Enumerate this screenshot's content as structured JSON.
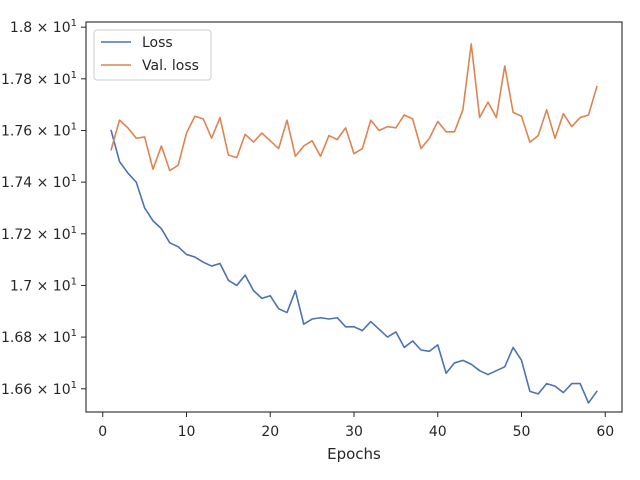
{
  "chart_data": {
    "type": "line",
    "title": "",
    "xlabel": "Epochs",
    "ylabel": "",
    "xlim": [
      -2,
      62
    ],
    "ylim": [
      16.51,
      18.02
    ],
    "grid": false,
    "legend_position": "top-left",
    "x_ticks": [
      {
        "value": 0,
        "label": "0"
      },
      {
        "value": 10,
        "label": "10"
      },
      {
        "value": 20,
        "label": "20"
      },
      {
        "value": 30,
        "label": "30"
      },
      {
        "value": 40,
        "label": "40"
      },
      {
        "value": 50,
        "label": "50"
      },
      {
        "value": 60,
        "label": "60"
      }
    ],
    "y_ticks": [
      {
        "value": 16.6,
        "mantissa": "1.66",
        "base": "10",
        "exp": "1"
      },
      {
        "value": 16.8,
        "mantissa": "1.68",
        "base": "10",
        "exp": "1"
      },
      {
        "value": 17.0,
        "mantissa": "1.7",
        "base": "10",
        "exp": "1"
      },
      {
        "value": 17.2,
        "mantissa": "1.72",
        "base": "10",
        "exp": "1"
      },
      {
        "value": 17.4,
        "mantissa": "1.74",
        "base": "10",
        "exp": "1"
      },
      {
        "value": 17.6,
        "mantissa": "1.76",
        "base": "10",
        "exp": "1"
      },
      {
        "value": 17.8,
        "mantissa": "1.78",
        "base": "10",
        "exp": "1"
      },
      {
        "value": 18.0,
        "mantissa": "1.8",
        "base": "10",
        "exp": "1"
      }
    ],
    "x": [
      1,
      2,
      3,
      4,
      5,
      6,
      7,
      8,
      9,
      10,
      11,
      12,
      13,
      14,
      15,
      16,
      17,
      18,
      19,
      20,
      21,
      22,
      23,
      24,
      25,
      26,
      27,
      28,
      29,
      30,
      31,
      32,
      33,
      34,
      35,
      36,
      37,
      38,
      39,
      40,
      41,
      42,
      43,
      44,
      45,
      46,
      47,
      48,
      49,
      50,
      51,
      52,
      53,
      54,
      55,
      56,
      57,
      58,
      59
    ],
    "series": [
      {
        "name": "Loss",
        "color": "#4c72b0",
        "values": [
          17.6,
          17.48,
          17.435,
          17.4,
          17.3,
          17.25,
          17.22,
          17.165,
          17.15,
          17.12,
          17.11,
          17.09,
          17.075,
          17.085,
          17.02,
          17.0,
          17.04,
          16.98,
          16.95,
          16.96,
          16.91,
          16.895,
          16.98,
          16.85,
          16.87,
          16.875,
          16.87,
          16.875,
          16.84,
          16.84,
          16.825,
          16.86,
          16.83,
          16.8,
          16.82,
          16.76,
          16.785,
          16.75,
          16.745,
          16.77,
          16.66,
          16.7,
          16.71,
          16.695,
          16.67,
          16.655,
          16.67,
          16.685,
          16.76,
          16.71,
          16.59,
          16.58,
          16.62,
          16.61,
          16.585,
          16.62,
          16.62,
          16.545,
          16.59
        ]
      },
      {
        "name": "Val. loss",
        "color": "#dd8452",
        "values": [
          17.525,
          17.64,
          17.61,
          17.57,
          17.575,
          17.45,
          17.54,
          17.445,
          17.465,
          17.59,
          17.655,
          17.645,
          17.57,
          17.65,
          17.505,
          17.495,
          17.585,
          17.555,
          17.59,
          17.56,
          17.53,
          17.64,
          17.5,
          17.54,
          17.56,
          17.5,
          17.58,
          17.565,
          17.61,
          17.51,
          17.53,
          17.64,
          17.6,
          17.615,
          17.61,
          17.66,
          17.645,
          17.53,
          17.57,
          17.635,
          17.595,
          17.595,
          17.68,
          17.935,
          17.65,
          17.71,
          17.65,
          17.85,
          17.67,
          17.655,
          17.555,
          17.58,
          17.68,
          17.57,
          17.665,
          17.615,
          17.65,
          17.66,
          17.77
        ]
      }
    ]
  }
}
